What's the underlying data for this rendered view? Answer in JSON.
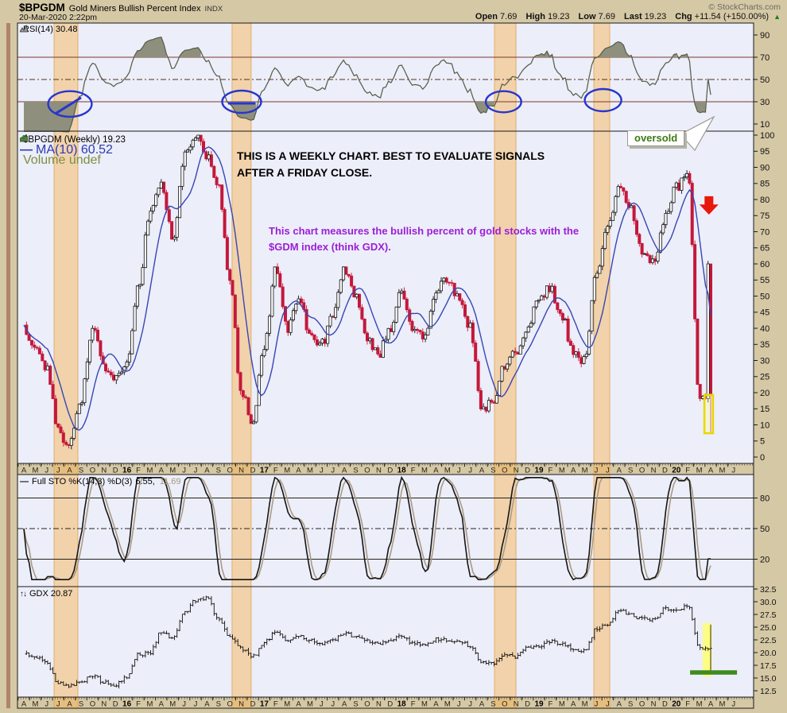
{
  "header": {
    "symbol": "$BPGDM",
    "name": "Gold Miners Bullish Percent Index",
    "exchange": "INDX",
    "datetime": "20-Mar-2020 2:22pm",
    "copyright": "© StockCharts.com",
    "quote": {
      "open_label": "Open",
      "open": "7.69",
      "high_label": "High",
      "high": "19.23",
      "low_label": "Low",
      "low": "7.69",
      "last_label": "Last",
      "last": "19.23",
      "chg_label": "Chg",
      "chg": "+11.54 (+150.00%)",
      "up_triangle": "▲"
    }
  },
  "legends": {
    "rsi": "RSI(14) 30.48",
    "price_symbol": "$BPGDM (Weekly) 19.23",
    "price_ma_dash": "—",
    "price_ma": "MA(10) 60.52",
    "price_volume": "Volume undef",
    "sto_dash": "—",
    "sto_label": "Full STO %K(14,3) %D(3)",
    "sto_k": "6.55,",
    "sto_d": "11.69",
    "gdx_icon": "↑↓",
    "gdx": "GDX 20.87"
  },
  "notes": {
    "weekly_note": "THIS IS A WEEKLY CHART. BEST TO EVALUATE SIGNALS AFTER A FRIDAY CLOSE.",
    "gdm_note": "This chart measures the bullish percent of gold stocks with the $GDM index (think GDX).",
    "oversold": "oversold"
  },
  "colors": {
    "background": "#d5c8a5",
    "panel_bg": "#eceefa",
    "candle_down": "#c4183a",
    "ma_line": "#3846b2",
    "rsi_line": "#565f4a",
    "rsi_fill": "#8f8f7d",
    "sto_k": "#161616",
    "sto_d": "#ab9a82",
    "band_orange": "#f7b455",
    "ellipse_blue": "#2836cc",
    "arrow_red": "#e8180a",
    "highlight_yellow": "#ffff6e",
    "support_green": "#3f8a1f",
    "oversold_green": "#3f7a12",
    "note_purple": "#9b1fd6",
    "chg_green": "#1e7d1e"
  },
  "chart_data": {
    "type": "multi-panel-stock-chart",
    "x_axis": {
      "start": "Apr 2015",
      "end": "Jun 2020",
      "month_labels": [
        "A",
        "M",
        "J",
        "J",
        "A",
        "S",
        "O",
        "N",
        "D",
        "16",
        "F",
        "M",
        "A",
        "M",
        "J",
        "J",
        "A",
        "S",
        "O",
        "N",
        "D",
        "17",
        "F",
        "M",
        "A",
        "M",
        "J",
        "J",
        "A",
        "S",
        "O",
        "N",
        "D",
        "18",
        "F",
        "M",
        "A",
        "M",
        "J",
        "J",
        "A",
        "S",
        "O",
        "N",
        "D",
        "19",
        "F",
        "M",
        "A",
        "M",
        "J",
        "J",
        "A",
        "S",
        "O",
        "N",
        "D",
        "20",
        "F",
        "M",
        "A",
        "M",
        "J"
      ]
    },
    "panels": [
      {
        "type": "line",
        "name": "RSI(14)",
        "last": 30.48,
        "ylim": [
          0,
          100
        ],
        "ticks": [
          90,
          70,
          50,
          30,
          10
        ],
        "gridlines": {
          "solid": [
            70,
            30
          ],
          "dashdot": [
            50
          ]
        }
      },
      {
        "type": "candlestick",
        "name": "$BPGDM Weekly",
        "last": 19.23,
        "ma_period": 10,
        "ma_last": 60.52,
        "ylim": [
          0,
          100
        ],
        "tick_step": 5,
        "mar2020_open": 7.69,
        "mar2020_high": 19.23,
        "mar2020_low": 7.69,
        "monthly_closes": [
          40,
          34,
          28,
          8,
          4,
          18,
          40,
          28,
          24,
          28,
          52,
          76,
          85,
          68,
          93,
          100,
          94,
          84,
          55,
          20,
          10,
          35,
          58,
          40,
          50,
          38,
          35,
          43,
          58,
          50,
          36,
          32,
          40,
          52,
          40,
          38,
          52,
          55,
          50,
          40,
          15,
          18,
          28,
          33,
          40,
          50,
          52,
          44,
          32,
          30,
          58,
          70,
          84,
          78,
          64,
          60,
          74,
          84,
          88,
          19.23
        ]
      },
      {
        "type": "line",
        "name": "Full STO %K(14,3) %D(3)",
        "k_last": 6.55,
        "d_last": 11.69,
        "ylim": [
          0,
          100
        ],
        "ticks": [
          80,
          50,
          20
        ],
        "gridlines": {
          "solid": [
            80,
            20
          ],
          "dashdot": [
            50
          ]
        }
      },
      {
        "type": "ohlc",
        "name": "GDX",
        "last": 20.87,
        "last_bar_high": 25.5,
        "last_bar_low": 16.0,
        "ylim": [
          11.3,
          33.2
        ],
        "ticks": [
          32.5,
          30.0,
          27.5,
          25.0,
          22.5,
          20.0,
          17.5,
          15.0,
          12.5
        ],
        "monthly_closes": [
          19.8,
          19.2,
          17.8,
          14.0,
          13.4,
          14.2,
          15.6,
          14.2,
          13.7,
          15.2,
          19.6,
          19.9,
          24.2,
          22.6,
          27.8,
          30.2,
          30.8,
          26.6,
          23.2,
          20.8,
          19.2,
          22.0,
          24.0,
          22.6,
          23.2,
          22.4,
          21.8,
          22.4,
          23.8,
          23.0,
          22.4,
          21.6,
          22.4,
          23.2,
          21.8,
          21.6,
          22.6,
          22.4,
          22.2,
          21.4,
          18.2,
          17.8,
          19.4,
          19.2,
          21.0,
          21.4,
          22.2,
          21.8,
          20.6,
          20.4,
          24.6,
          25.6,
          28.6,
          27.4,
          26.6,
          26.4,
          28.6,
          28.2,
          29.4,
          20.87
        ]
      }
    ],
    "annotations": {
      "orange_bands_months": [
        [
          2.64,
          4.72
        ],
        [
          18.19,
          19.86
        ],
        [
          41.11,
          42.99
        ],
        [
          49.79,
          51.18
        ]
      ],
      "ellipses": [
        {
          "cx": 4.03,
          "cy": 28.0,
          "rx": 1.9,
          "ry": 11.5,
          "line": "diagonal"
        },
        {
          "cx": 19.03,
          "cy": 30.0,
          "rx": 1.7,
          "ry": 10.0,
          "line": "horizontal"
        },
        {
          "cx": 41.9,
          "cy": 30.0,
          "rx": 1.55,
          "ry": 9.5
        },
        {
          "cx": 50.6,
          "cy": 31.4,
          "rx": 1.6,
          "ry": 10.0
        }
      ],
      "red_arrow": {
        "month": 59.85,
        "value_top": 81,
        "value_tip": 75.3
      },
      "yellow_box_price": {
        "months": [
          59.45,
          60.2
        ],
        "values": [
          19.3,
          7.4
        ]
      },
      "yellow_band_gdx": {
        "months": [
          59.3,
          60.1
        ],
        "values": [
          25.8,
          15.3
        ]
      },
      "green_line_gdx": {
        "months": [
          58.2,
          62.3
        ],
        "value": 16.1
      }
    }
  }
}
